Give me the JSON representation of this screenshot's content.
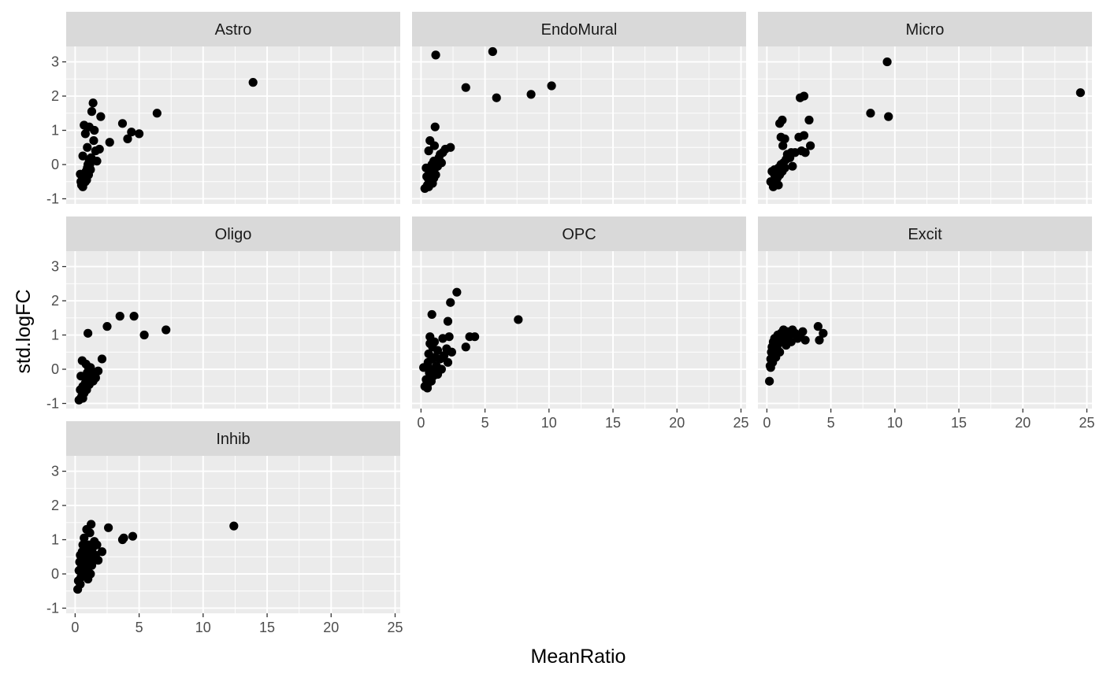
{
  "chart_data": {
    "type": "scatter",
    "facet_layout": "3 columns",
    "xlabel": "MeanRatio",
    "ylabel": "std.logFC",
    "xlim": [
      -0.7,
      25.4
    ],
    "ylim": [
      -1.15,
      3.45
    ],
    "x_ticks": [
      0,
      5,
      10,
      15,
      20,
      25
    ],
    "y_ticks": [
      -1,
      0,
      1,
      2,
      3
    ],
    "x_tick_labels": [
      "0",
      "5",
      "10",
      "15",
      "20",
      "25"
    ],
    "y_tick_labels": [
      "-1",
      "0",
      "1",
      "2",
      "3"
    ],
    "grid": true,
    "point_color": "#000000",
    "panel_background": "#ebebeb",
    "strip_background": "#d9d9d9",
    "gridline_color": "#ffffff",
    "panels": [
      {
        "name": "Astro",
        "points": [
          [
            0.4,
            -0.28
          ],
          [
            0.45,
            -0.5
          ],
          [
            0.5,
            -0.6
          ],
          [
            0.55,
            -0.45
          ],
          [
            0.6,
            -0.65
          ],
          [
            0.65,
            -0.55
          ],
          [
            0.7,
            -0.4
          ],
          [
            0.75,
            -0.3
          ],
          [
            0.8,
            -0.5
          ],
          [
            0.85,
            -0.2
          ],
          [
            0.9,
            -0.35
          ],
          [
            0.95,
            -0.1
          ],
          [
            1.0,
            0.0
          ],
          [
            1.05,
            -0.3
          ],
          [
            1.1,
            0.1
          ],
          [
            1.15,
            0.0
          ],
          [
            1.2,
            -0.15
          ],
          [
            0.6,
            0.25
          ],
          [
            0.8,
            0.9
          ],
          [
            0.7,
            1.15
          ],
          [
            0.95,
            0.5
          ],
          [
            1.1,
            1.1
          ],
          [
            1.3,
            1.55
          ],
          [
            1.4,
            1.8
          ],
          [
            1.5,
            1.0
          ],
          [
            1.6,
            0.4
          ],
          [
            1.7,
            0.1
          ],
          [
            1.45,
            0.7
          ],
          [
            2.0,
            1.4
          ],
          [
            1.9,
            0.45
          ],
          [
            2.7,
            0.65
          ],
          [
            3.7,
            1.2
          ],
          [
            4.1,
            0.75
          ],
          [
            4.4,
            0.95
          ],
          [
            5.0,
            0.9
          ],
          [
            6.4,
            1.5
          ],
          [
            13.9,
            2.4
          ],
          [
            1.25,
            0.2
          ],
          [
            1.0,
            -0.2
          ],
          [
            0.9,
            -0.45
          ]
        ]
      },
      {
        "name": "EndoMural",
        "points": [
          [
            0.3,
            -0.7
          ],
          [
            0.4,
            -0.1
          ],
          [
            0.5,
            -0.6
          ],
          [
            0.55,
            -0.4
          ],
          [
            0.6,
            0.4
          ],
          [
            0.65,
            -0.2
          ],
          [
            0.7,
            0.7
          ],
          [
            0.75,
            -0.5
          ],
          [
            0.8,
            -0.3
          ],
          [
            0.85,
            0.0
          ],
          [
            0.9,
            -0.55
          ],
          [
            0.95,
            -0.2
          ],
          [
            1.0,
            -0.4
          ],
          [
            1.05,
            0.55
          ],
          [
            1.1,
            -0.1
          ],
          [
            1.15,
            -0.3
          ],
          [
            1.2,
            0.05
          ],
          [
            1.3,
            0.1
          ],
          [
            1.4,
            0.2
          ],
          [
            1.5,
            0.3
          ],
          [
            1.7,
            0.35
          ],
          [
            1.9,
            0.45
          ],
          [
            2.3,
            0.5
          ],
          [
            1.6,
            0.05
          ],
          [
            1.1,
            1.1
          ],
          [
            1.15,
            3.2
          ],
          [
            3.5,
            2.25
          ],
          [
            5.6,
            3.3
          ],
          [
            5.9,
            1.95
          ],
          [
            8.6,
            2.05
          ],
          [
            10.2,
            2.3
          ],
          [
            0.6,
            -0.65
          ],
          [
            0.8,
            -0.15
          ],
          [
            1.0,
            0.1
          ],
          [
            1.3,
            -0.05
          ],
          [
            0.45,
            -0.35
          ]
        ]
      },
      {
        "name": "Micro",
        "points": [
          [
            0.3,
            -0.5
          ],
          [
            0.4,
            -0.2
          ],
          [
            0.5,
            -0.6
          ],
          [
            0.6,
            -0.3
          ],
          [
            0.7,
            -0.55
          ],
          [
            0.8,
            -0.4
          ],
          [
            0.9,
            -0.1
          ],
          [
            1.0,
            -0.3
          ],
          [
            1.1,
            0.0
          ],
          [
            1.2,
            -0.2
          ],
          [
            1.3,
            0.05
          ],
          [
            1.4,
            -0.1
          ],
          [
            1.5,
            0.15
          ],
          [
            1.6,
            0.3
          ],
          [
            1.8,
            0.2
          ],
          [
            2.0,
            -0.05
          ],
          [
            2.2,
            0.35
          ],
          [
            2.5,
            0.8
          ],
          [
            2.7,
            0.4
          ],
          [
            2.9,
            0.85
          ],
          [
            3.0,
            0.35
          ],
          [
            3.4,
            0.55
          ],
          [
            3.3,
            1.3
          ],
          [
            2.6,
            1.95
          ],
          [
            2.9,
            2.0
          ],
          [
            1.0,
            1.2
          ],
          [
            1.2,
            1.3
          ],
          [
            1.1,
            0.8
          ],
          [
            1.25,
            0.55
          ],
          [
            1.4,
            0.75
          ],
          [
            8.1,
            1.5
          ],
          [
            9.4,
            3.0
          ],
          [
            9.5,
            1.4
          ],
          [
            24.5,
            2.1
          ],
          [
            1.9,
            0.35
          ],
          [
            0.6,
            -0.15
          ],
          [
            0.5,
            -0.65
          ],
          [
            0.9,
            -0.6
          ]
        ]
      },
      {
        "name": "Oligo",
        "points": [
          [
            0.3,
            -0.9
          ],
          [
            0.4,
            -0.6
          ],
          [
            0.45,
            -0.2
          ],
          [
            0.5,
            -0.8
          ],
          [
            0.55,
            0.25
          ],
          [
            0.6,
            -0.5
          ],
          [
            0.7,
            -0.7
          ],
          [
            0.75,
            -0.2
          ],
          [
            0.8,
            -0.4
          ],
          [
            0.85,
            0.15
          ],
          [
            0.9,
            -0.6
          ],
          [
            0.95,
            -0.1
          ],
          [
            1.0,
            -0.3
          ],
          [
            1.05,
            0.05
          ],
          [
            1.1,
            -0.45
          ],
          [
            1.2,
            -0.2
          ],
          [
            1.3,
            -0.15
          ],
          [
            1.4,
            -0.35
          ],
          [
            1.5,
            -0.1
          ],
          [
            1.6,
            -0.25
          ],
          [
            1.8,
            -0.05
          ],
          [
            2.1,
            0.3
          ],
          [
            1.0,
            1.05
          ],
          [
            2.5,
            1.25
          ],
          [
            3.5,
            1.55
          ],
          [
            4.6,
            1.55
          ],
          [
            5.4,
            1.0
          ],
          [
            7.1,
            1.15
          ],
          [
            0.6,
            -0.85
          ],
          [
            1.2,
            0.05
          ]
        ]
      },
      {
        "name": "OPC",
        "points": [
          [
            0.2,
            0.05
          ],
          [
            0.3,
            -0.5
          ],
          [
            0.4,
            -0.3
          ],
          [
            0.5,
            -0.45
          ],
          [
            0.55,
            0.2
          ],
          [
            0.6,
            0.45
          ],
          [
            0.65,
            -0.1
          ],
          [
            0.7,
            0.75
          ],
          [
            0.75,
            0.0
          ],
          [
            0.8,
            -0.35
          ],
          [
            0.85,
            0.3
          ],
          [
            0.9,
            0.65
          ],
          [
            0.95,
            -0.2
          ],
          [
            1.0,
            0.0
          ],
          [
            1.05,
            0.8
          ],
          [
            1.1,
            0.35
          ],
          [
            1.2,
            0.1
          ],
          [
            1.3,
            0.55
          ],
          [
            1.5,
            0.3
          ],
          [
            1.6,
            0.0
          ],
          [
            1.7,
            0.9
          ],
          [
            1.8,
            0.4
          ],
          [
            2.0,
            0.6
          ],
          [
            2.1,
            0.2
          ],
          [
            2.2,
            0.95
          ],
          [
            2.4,
            0.5
          ],
          [
            2.1,
            1.4
          ],
          [
            2.3,
            1.95
          ],
          [
            2.8,
            2.25
          ],
          [
            3.5,
            0.65
          ],
          [
            3.8,
            0.95
          ],
          [
            4.2,
            0.95
          ],
          [
            7.6,
            1.45
          ],
          [
            0.85,
            1.6
          ],
          [
            1.3,
            -0.15
          ],
          [
            0.5,
            -0.55
          ],
          [
            0.7,
            0.95
          ]
        ]
      },
      {
        "name": "Excit",
        "points": [
          [
            0.2,
            -0.35
          ],
          [
            0.25,
            0.1
          ],
          [
            0.3,
            0.3
          ],
          [
            0.35,
            0.5
          ],
          [
            0.4,
            0.65
          ],
          [
            0.45,
            0.2
          ],
          [
            0.5,
            0.8
          ],
          [
            0.55,
            0.45
          ],
          [
            0.6,
            0.9
          ],
          [
            0.65,
            0.7
          ],
          [
            0.7,
            0.35
          ],
          [
            0.75,
            0.85
          ],
          [
            0.8,
            0.6
          ],
          [
            0.85,
            1.0
          ],
          [
            0.9,
            0.75
          ],
          [
            0.95,
            0.95
          ],
          [
            1.0,
            0.5
          ],
          [
            1.1,
            1.05
          ],
          [
            1.2,
            0.85
          ],
          [
            1.3,
            1.15
          ],
          [
            1.4,
            0.95
          ],
          [
            1.5,
            0.7
          ],
          [
            1.6,
            1.1
          ],
          [
            1.7,
            0.9
          ],
          [
            1.8,
            1.0
          ],
          [
            1.9,
            0.8
          ],
          [
            2.0,
            1.15
          ],
          [
            2.2,
            1.05
          ],
          [
            2.4,
            0.9
          ],
          [
            2.6,
            1.0
          ],
          [
            2.8,
            1.1
          ],
          [
            3.0,
            0.85
          ],
          [
            4.0,
            1.25
          ],
          [
            4.1,
            0.85
          ],
          [
            4.4,
            1.05
          ],
          [
            0.3,
            0.05
          ],
          [
            0.5,
            0.3
          ],
          [
            1.0,
            0.95
          ]
        ]
      },
      {
        "name": "Inhib",
        "points": [
          [
            0.2,
            -0.45
          ],
          [
            0.25,
            -0.2
          ],
          [
            0.3,
            0.1
          ],
          [
            0.35,
            0.35
          ],
          [
            0.4,
            0.55
          ],
          [
            0.45,
            -0.1
          ],
          [
            0.5,
            0.2
          ],
          [
            0.55,
            0.65
          ],
          [
            0.6,
            0.0
          ],
          [
            0.65,
            0.4
          ],
          [
            0.7,
            1.05
          ],
          [
            0.75,
            0.3
          ],
          [
            0.8,
            0.7
          ],
          [
            0.85,
            -0.05
          ],
          [
            0.9,
            1.3
          ],
          [
            0.95,
            0.5
          ],
          [
            1.0,
            0.15
          ],
          [
            1.05,
            0.85
          ],
          [
            1.1,
            0.35
          ],
          [
            1.15,
            1.2
          ],
          [
            1.2,
            0.6
          ],
          [
            1.25,
            1.45
          ],
          [
            1.3,
            0.25
          ],
          [
            1.35,
            0.75
          ],
          [
            1.4,
            0.45
          ],
          [
            1.5,
            0.95
          ],
          [
            1.6,
            0.55
          ],
          [
            1.7,
            0.85
          ],
          [
            1.8,
            0.4
          ],
          [
            2.1,
            0.65
          ],
          [
            2.6,
            1.35
          ],
          [
            3.7,
            1.0
          ],
          [
            3.8,
            1.05
          ],
          [
            4.5,
            1.1
          ],
          [
            12.4,
            1.4
          ],
          [
            0.4,
            -0.3
          ],
          [
            0.6,
            0.85
          ],
          [
            0.8,
            0.05
          ],
          [
            1.0,
            -0.15
          ],
          [
            1.2,
            0.0
          ]
        ]
      }
    ]
  }
}
